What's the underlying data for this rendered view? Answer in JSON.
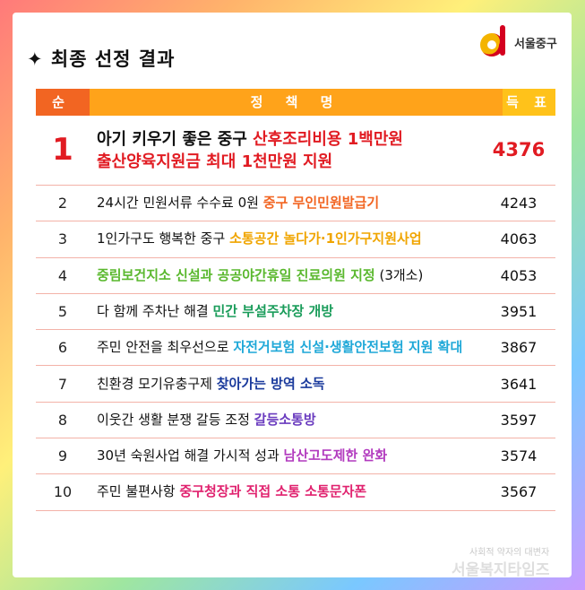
{
  "title": "✦ 최종 선정 결과",
  "logo": {
    "text": "서울중구",
    "icon": "seoul-junggu-logo"
  },
  "table": {
    "headers": {
      "rank": "순 위",
      "policy": "정 책 명",
      "votes": "득 표 수"
    },
    "rows": [
      {
        "rank": "1",
        "lines": [
          [
            {
              "text": "아기 키우기 좋은 중구 ",
              "color": "#111111"
            },
            {
              "text": "산후조리비용 1백만원",
              "color": "#e11b22"
            }
          ],
          [
            {
              "text": "출산양육지원금 최대 1천만원 지원",
              "color": "#e11b22"
            }
          ]
        ],
        "votes": "4376"
      },
      {
        "rank": "2",
        "lines": [
          [
            {
              "text": "24시간 민원서류 수수료 0원 ",
              "color": "#111111"
            },
            {
              "text": "중구 무인민원발급기",
              "color": "#f26522"
            }
          ]
        ],
        "votes": "4243"
      },
      {
        "rank": "3",
        "lines": [
          [
            {
              "text": "1인가구도 행복한 중구 ",
              "color": "#111111"
            },
            {
              "text": "소통공간 놀다가·1인가구지원사업",
              "color": "#f0a500"
            }
          ]
        ],
        "votes": "4063"
      },
      {
        "rank": "4",
        "lines": [
          [
            {
              "text": "중림보건지소 신설과 공공야간휴일 진료의원 지정",
              "color": "#5ab82e"
            },
            {
              "text": " (3개소)",
              "color": "#111111"
            }
          ]
        ],
        "votes": "4053"
      },
      {
        "rank": "5",
        "lines": [
          [
            {
              "text": "다 함께 주차난 해결 ",
              "color": "#111111"
            },
            {
              "text": "민간 부설주차장 개방",
              "color": "#1a9c5a"
            }
          ]
        ],
        "votes": "3951"
      },
      {
        "rank": "6",
        "lines": [
          [
            {
              "text": "주민 안전을 최우선으로 ",
              "color": "#111111"
            },
            {
              "text": "자전거보험 신설·생활안전보험 지원 확대",
              "color": "#1fa8d8"
            }
          ]
        ],
        "votes": "3867"
      },
      {
        "rank": "7",
        "lines": [
          [
            {
              "text": "친환경 모기유충구제 ",
              "color": "#111111"
            },
            {
              "text": "찾아가는 방역 소독",
              "color": "#1a3a9c"
            }
          ]
        ],
        "votes": "3641"
      },
      {
        "rank": "8",
        "lines": [
          [
            {
              "text": "이웃간 생활 분쟁 갈등 조정 ",
              "color": "#111111"
            },
            {
              "text": "갈등소통방",
              "color": "#6a3bbf"
            }
          ]
        ],
        "votes": "3597"
      },
      {
        "rank": "9",
        "lines": [
          [
            {
              "text": "30년 숙원사업 해결 가시적 성과 ",
              "color": "#111111"
            },
            {
              "text": "남산고도제한 완화",
              "color": "#b23bbf"
            }
          ]
        ],
        "votes": "3574"
      },
      {
        "rank": "10",
        "lines": [
          [
            {
              "text": "주민 불편사항 ",
              "color": "#111111"
            },
            {
              "text": "중구청장과 직접 소통 소통문자폰",
              "color": "#e0216e"
            }
          ]
        ],
        "votes": "3567"
      }
    ]
  },
  "footer": {
    "sub": "사회적 약자의 대변자",
    "brand": "서울복지타임즈"
  }
}
